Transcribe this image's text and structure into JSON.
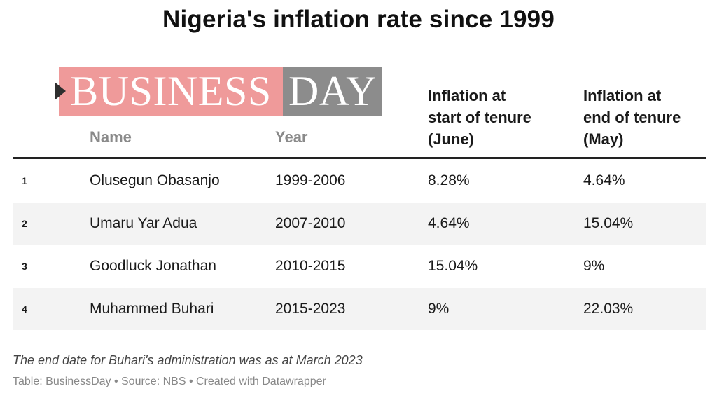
{
  "title": "Nigeria's inflation rate since 1999",
  "logo": {
    "part1": "BUSINESS",
    "part2": "DAY"
  },
  "chart_data": {
    "type": "table",
    "columns": [
      "",
      "Name",
      "Year",
      "Inflation at start of tenure (June)",
      "Inflation at end of tenure (May)"
    ],
    "header_lines": {
      "start": [
        "Inflation at",
        "start of tenure",
        "(June)"
      ],
      "end": [
        "Inflation at",
        "end of tenure",
        "(May)"
      ]
    },
    "rows": [
      [
        "1",
        "Olusegun Obasanjo",
        "1999-2006",
        "8.28%",
        "4.64%"
      ],
      [
        "2",
        "Umaru Yar Adua",
        "2007-2010",
        "4.64%",
        "15.04%"
      ],
      [
        "3",
        "Goodluck Jonathan",
        "2010-2015",
        "15.04%",
        "9%"
      ],
      [
        "4",
        "Muhammed Buhari",
        "2015-2023",
        "9%",
        "22.03%"
      ]
    ],
    "stripe_color": "#f3f3f3"
  },
  "note": "The end date for Buhari's administration was as at March 2023",
  "credit": "Table: BusinessDay • Source: NBS • Created with Datawrapper",
  "colors": {
    "logo_red": "#ef9a9a",
    "logo_gray": "#8c8c8c",
    "header_muted": "#8a8a8a"
  }
}
